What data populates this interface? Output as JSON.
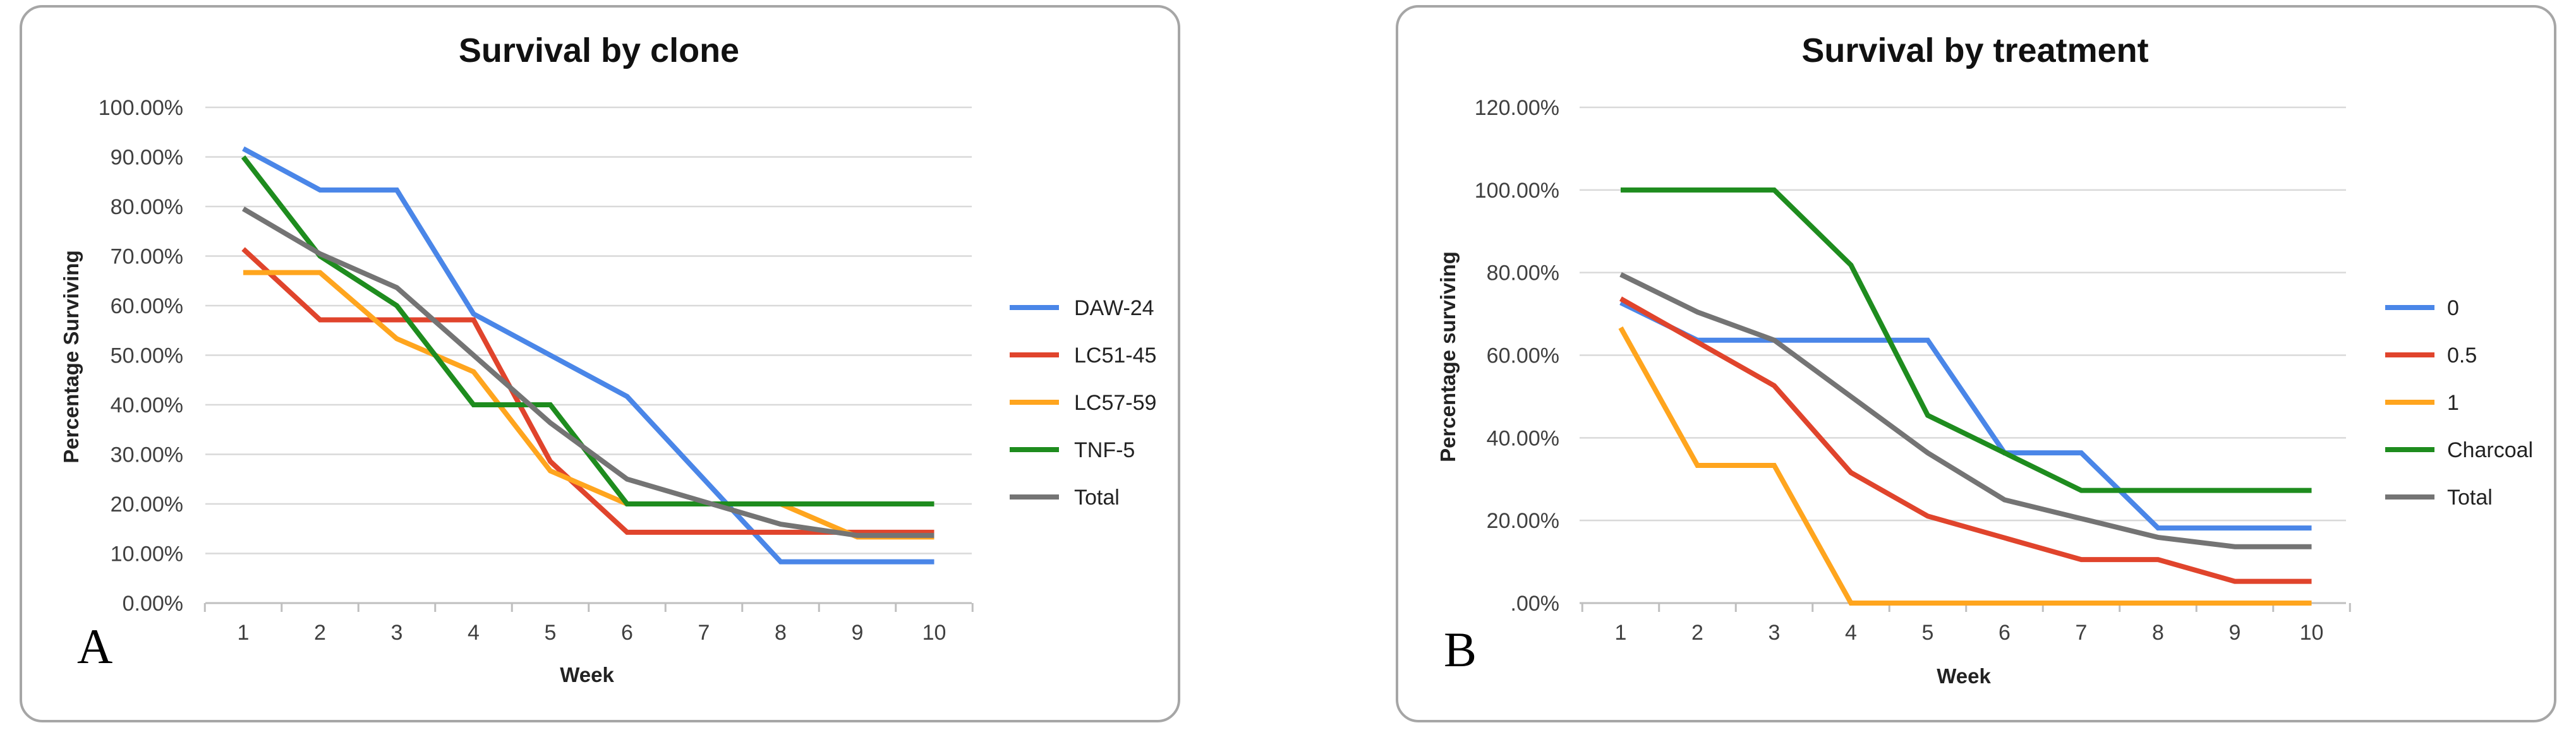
{
  "chart_data": [
    {
      "type": "line",
      "title": "Survival by clone",
      "xlabel": "Week",
      "ylabel": "Percentage Surviving",
      "ylim": [
        0,
        100
      ],
      "y_ticks": [
        "0.00%",
        "10.00%",
        "20.00%",
        "30.00%",
        "40.00%",
        "50.00%",
        "60.00%",
        "70.00%",
        "80.00%",
        "90.00%",
        "100.00%"
      ],
      "categories": [
        "1",
        "2",
        "3",
        "4",
        "5",
        "6",
        "7",
        "8",
        "9",
        "10"
      ],
      "grid": true,
      "legend_position": "right",
      "panel_label": "A",
      "series": [
        {
          "name": "DAW-24",
          "color": "#4a86e8",
          "values": [
            91.67,
            83.33,
            83.33,
            58.33,
            50.0,
            41.67,
            25.0,
            8.33,
            8.33,
            8.33
          ]
        },
        {
          "name": "LC51-45",
          "color": "#e0442c",
          "values": [
            71.43,
            57.14,
            57.14,
            57.14,
            28.57,
            14.29,
            14.29,
            14.29,
            14.29,
            14.29
          ]
        },
        {
          "name": "LC57-59",
          "color": "#ffa51e",
          "values": [
            66.67,
            66.67,
            53.33,
            46.67,
            26.67,
            20.0,
            20.0,
            20.0,
            13.33,
            13.33
          ]
        },
        {
          "name": "TNF-5",
          "color": "#1e8c1e",
          "values": [
            90.0,
            70.0,
            60.0,
            40.0,
            40.0,
            20.0,
            20.0,
            20.0,
            20.0,
            20.0
          ]
        },
        {
          "name": "Total",
          "color": "#747474",
          "values": [
            79.55,
            70.45,
            63.64,
            50.0,
            36.36,
            25.0,
            20.45,
            15.91,
            13.64,
            13.64
          ]
        }
      ]
    },
    {
      "type": "line",
      "title": "Survival by treatment",
      "xlabel": "Week",
      "ylabel": "Percentage surviving",
      "ylim": [
        0,
        120
      ],
      "y_ticks": [
        ".00%",
        "20.00%",
        "40.00%",
        "60.00%",
        "80.00%",
        "100.00%",
        "120.00%"
      ],
      "categories": [
        "1",
        "2",
        "3",
        "4",
        "5",
        "6",
        "7",
        "8",
        "9",
        "10"
      ],
      "grid": true,
      "legend_position": "right",
      "panel_label": "B",
      "series": [
        {
          "name": "0",
          "color": "#4a86e8",
          "values": [
            72.73,
            63.64,
            63.64,
            63.64,
            63.64,
            36.36,
            36.36,
            18.18,
            18.18,
            18.18
          ]
        },
        {
          "name": "0.5",
          "color": "#e0442c",
          "values": [
            73.68,
            63.16,
            52.63,
            31.58,
            21.05,
            15.79,
            10.53,
            10.53,
            5.26,
            5.26
          ]
        },
        {
          "name": "1",
          "color": "#ffa51e",
          "values": [
            66.67,
            33.33,
            33.33,
            0.0,
            0.0,
            0.0,
            0.0,
            0.0,
            0.0,
            0.0
          ]
        },
        {
          "name": "Charcoal",
          "color": "#1e8c1e",
          "values": [
            100.0,
            100.0,
            100.0,
            81.82,
            45.45,
            36.36,
            27.27,
            27.27,
            27.27,
            27.27
          ]
        },
        {
          "name": "Total",
          "color": "#747474",
          "values": [
            79.55,
            70.45,
            63.64,
            50.0,
            36.36,
            25.0,
            20.45,
            15.91,
            13.64,
            13.64
          ]
        }
      ]
    }
  ]
}
